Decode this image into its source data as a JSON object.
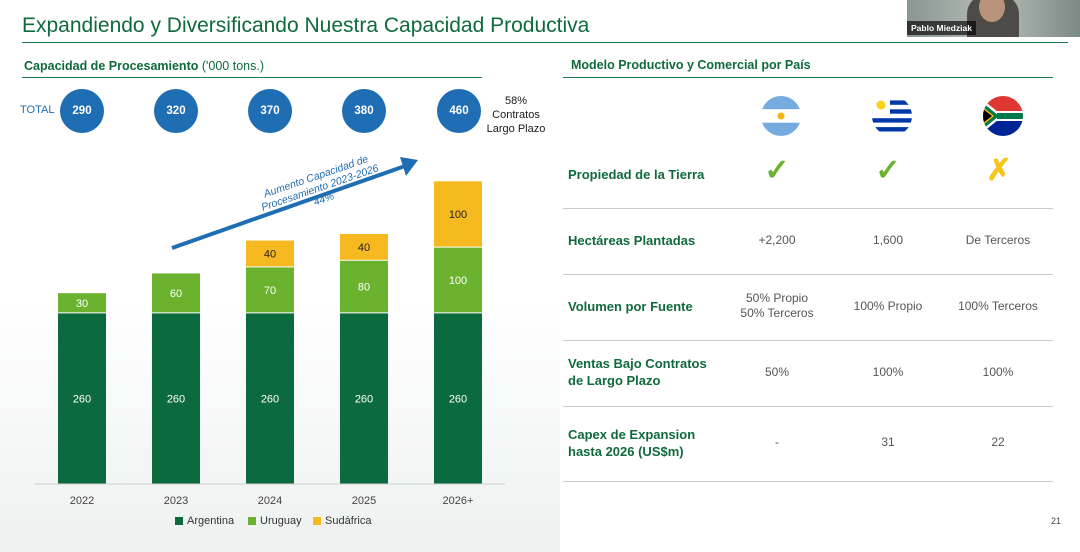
{
  "title": "Expandiendo y Diversificando Nuestra Capacidad Productiva",
  "video": {
    "participant_name": "Pablo Miedziak"
  },
  "left_section": {
    "title": "Capacidad de Procesamiento",
    "unit": "('000 tons.)"
  },
  "totals": {
    "label": "TOTAL",
    "values": [
      "290",
      "320",
      "370",
      "380",
      "460"
    ]
  },
  "note": {
    "line1": "58%",
    "line2": "Contratos",
    "line3": "Largo Plazo"
  },
  "arrow": {
    "line1": "Aumento Capacidad de",
    "line2": "Procesamiento 2023-2026",
    "line3": "44%"
  },
  "colors": {
    "argentina": "#0b6b3f",
    "uruguay": "#6bb32e",
    "sudafrica": "#f6b920",
    "blue": "#1f6db3",
    "green_text": "#0f6a3c"
  },
  "chart_data": {
    "type": "bar",
    "stacked": true,
    "title": "Capacidad de Procesamiento ('000 tons.)",
    "categories": [
      "2022",
      "2023",
      "2024",
      "2025",
      "2026+"
    ],
    "series": [
      {
        "name": "Argentina",
        "values": [
          260,
          260,
          260,
          260,
          260
        ]
      },
      {
        "name": "Uruguay",
        "values": [
          30,
          60,
          70,
          80,
          100
        ]
      },
      {
        "name": "Sudáfrica",
        "values": [
          0,
          0,
          40,
          40,
          100
        ]
      }
    ],
    "totals": [
      290,
      320,
      370,
      380,
      460
    ],
    "ylim": [
      0,
      500
    ],
    "xlabel": "",
    "ylabel": "",
    "legend_position": "bottom",
    "grid": false
  },
  "right_section": {
    "title": "Modelo Productivo y Comercial por País",
    "flags": [
      "argentina-flag-icon",
      "uruguay-flag-icon",
      "south-africa-flag-icon"
    ],
    "rows": [
      {
        "label_lines": [
          "Propiedad de la Tierra"
        ],
        "type": "marks",
        "cells": [
          "✓",
          "✓",
          "✗"
        ]
      },
      {
        "label_lines": [
          "Hectáreas Plantadas"
        ],
        "type": "text",
        "cells": [
          [
            "+2,200"
          ],
          [
            "1,600"
          ],
          [
            "De Terceros"
          ]
        ]
      },
      {
        "label_lines": [
          "Volumen por Fuente"
        ],
        "type": "text",
        "cells": [
          [
            "50% Propio",
            "50% Terceros"
          ],
          [
            "100% Propio"
          ],
          [
            "100% Terceros"
          ]
        ]
      },
      {
        "label_lines": [
          "Ventas Bajo Contratos",
          "de Largo Plazo"
        ],
        "type": "text",
        "cells": [
          [
            "50%"
          ],
          [
            "100%"
          ],
          [
            "100%"
          ]
        ]
      },
      {
        "label_lines": [
          "Capex de Expansion",
          "hasta 2026 (US$m)"
        ],
        "type": "text",
        "cells": [
          [
            "-"
          ],
          [
            "31"
          ],
          [
            "22"
          ]
        ]
      }
    ]
  },
  "page_number": "21"
}
